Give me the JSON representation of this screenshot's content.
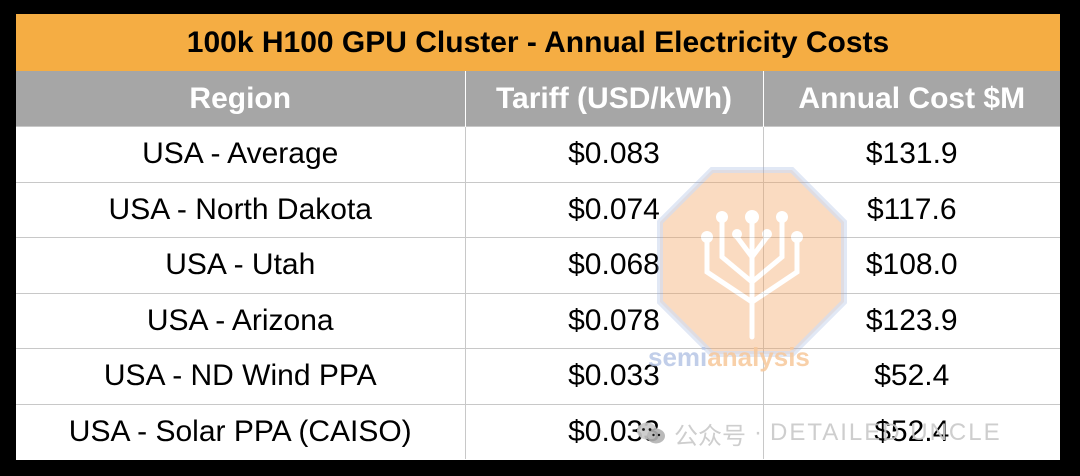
{
  "title": "100k H100 GPU Cluster - Annual Electricity Costs",
  "columns": [
    "Region",
    "Tariff (USD/kWh)",
    "Annual Cost $M"
  ],
  "rows": [
    [
      "USA - Average",
      "$0.083",
      "$131.9"
    ],
    [
      "USA - North Dakota",
      "$0.074",
      "$117.6"
    ],
    [
      "USA - Utah",
      "$0.068",
      "$108.0"
    ],
    [
      "USA - Arizona",
      "$0.078",
      "$123.9"
    ],
    [
      "USA - ND Wind PPA",
      "$0.033",
      "$52.4"
    ],
    [
      "USA - Solar PPA (CAISO)",
      "$0.033",
      "$52.4"
    ]
  ],
  "watermark": {
    "brand_part1": "semi",
    "brand_part2": "analysis",
    "wechat_label": "公众号",
    "wechat_separator": "·",
    "wechat_account": "DETAILED UNCLE",
    "logo_icon": "circuit-tree-icon"
  },
  "colors": {
    "title_bg": "#f5ad43",
    "header_bg": "#a6a6a6",
    "header_text": "#ffffff",
    "grid_line": "#c8c8c8",
    "background": "#000000"
  }
}
